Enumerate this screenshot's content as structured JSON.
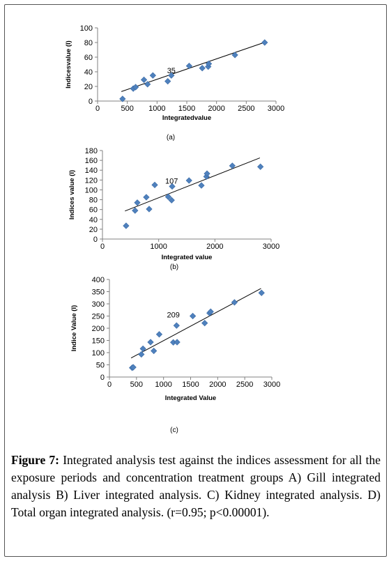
{
  "figure": {
    "label": "Figure 7:",
    "caption_text": "Integrated analysis test against the indices assessment for all the exposure periods and concentration treatment groups A) Gill integrated analysis B) Liver integrated analysis. C) Kidney integrated analysis. D) Total organ integrated analysis. (r=0.95; p<0.00001)."
  },
  "chart_data": [
    {
      "type": "scatter",
      "panel_label": "(a)",
      "xlabel": "Integratedvalue",
      "ylabel": "Indicesvalue (I)",
      "xlim": [
        0,
        3000
      ],
      "ylim": [
        0,
        100
      ],
      "xticks": [
        0,
        500,
        1000,
        1500,
        2000,
        2500,
        3000
      ],
      "yticks": [
        0,
        20,
        40,
        60,
        80,
        100
      ],
      "annotation": {
        "text": "35",
        "x": 1240,
        "y": 36
      },
      "marker_color": "#4f81bd",
      "trendline": {
        "x": [
          400,
          2800
        ],
        "y": [
          13,
          80
        ]
      },
      "points": [
        {
          "x": 420,
          "y": 3
        },
        {
          "x": 600,
          "y": 17
        },
        {
          "x": 640,
          "y": 19
        },
        {
          "x": 780,
          "y": 29
        },
        {
          "x": 840,
          "y": 23
        },
        {
          "x": 930,
          "y": 35
        },
        {
          "x": 1180,
          "y": 27
        },
        {
          "x": 1240,
          "y": 35
        },
        {
          "x": 1540,
          "y": 48
        },
        {
          "x": 1760,
          "y": 45
        },
        {
          "x": 1860,
          "y": 47
        },
        {
          "x": 1870,
          "y": 51
        },
        {
          "x": 2310,
          "y": 63
        },
        {
          "x": 2810,
          "y": 80
        }
      ]
    },
    {
      "type": "scatter",
      "panel_label": "(b)",
      "xlabel": "Integrated value",
      "ylabel": "Indices value (I)",
      "xlim": [
        0,
        3000
      ],
      "ylim": [
        0,
        180
      ],
      "xticks": [
        0,
        1000,
        2000,
        3000
      ],
      "yticks": [
        0,
        20,
        40,
        60,
        80,
        100,
        120,
        140,
        160,
        180
      ],
      "annotation": {
        "text": "107",
        "x": 1230,
        "y": 110
      },
      "marker_color": "#4f81bd",
      "trendline": {
        "x": [
          400,
          2800
        ],
        "y": [
          57,
          165
        ]
      },
      "points": [
        {
          "x": 420,
          "y": 27
        },
        {
          "x": 580,
          "y": 58
        },
        {
          "x": 620,
          "y": 74
        },
        {
          "x": 780,
          "y": 85
        },
        {
          "x": 830,
          "y": 61
        },
        {
          "x": 930,
          "y": 110
        },
        {
          "x": 1170,
          "y": 86
        },
        {
          "x": 1230,
          "y": 79
        },
        {
          "x": 1240,
          "y": 107
        },
        {
          "x": 1540,
          "y": 119
        },
        {
          "x": 1760,
          "y": 109
        },
        {
          "x": 1850,
          "y": 127
        },
        {
          "x": 1860,
          "y": 133
        },
        {
          "x": 2310,
          "y": 149
        },
        {
          "x": 2810,
          "y": 147
        }
      ]
    },
    {
      "type": "scatter",
      "panel_label": "(c)",
      "xlabel": "Integrated Value",
      "ylabel": "Indice Value (I)",
      "xlim": [
        0,
        3000
      ],
      "ylim": [
        0,
        400
      ],
      "xticks": [
        0,
        500,
        1000,
        1500,
        2000,
        2500,
        3000
      ],
      "yticks": [
        0,
        50,
        100,
        150,
        200,
        250,
        300,
        350,
        400
      ],
      "annotation": {
        "text": "209",
        "x": 1180,
        "y": 238
      },
      "marker_color": "#4f81bd",
      "trendline": {
        "x": [
          400,
          2800
        ],
        "y": [
          78,
          363
        ]
      },
      "points": [
        {
          "x": 420,
          "y": 38
        },
        {
          "x": 440,
          "y": 40
        },
        {
          "x": 590,
          "y": 93
        },
        {
          "x": 620,
          "y": 116
        },
        {
          "x": 760,
          "y": 143
        },
        {
          "x": 820,
          "y": 107
        },
        {
          "x": 920,
          "y": 175
        },
        {
          "x": 1180,
          "y": 142
        },
        {
          "x": 1240,
          "y": 211
        },
        {
          "x": 1250,
          "y": 143
        },
        {
          "x": 1540,
          "y": 250
        },
        {
          "x": 1760,
          "y": 221
        },
        {
          "x": 1850,
          "y": 262
        },
        {
          "x": 1870,
          "y": 268
        },
        {
          "x": 2310,
          "y": 306
        },
        {
          "x": 2810,
          "y": 345
        }
      ]
    }
  ]
}
